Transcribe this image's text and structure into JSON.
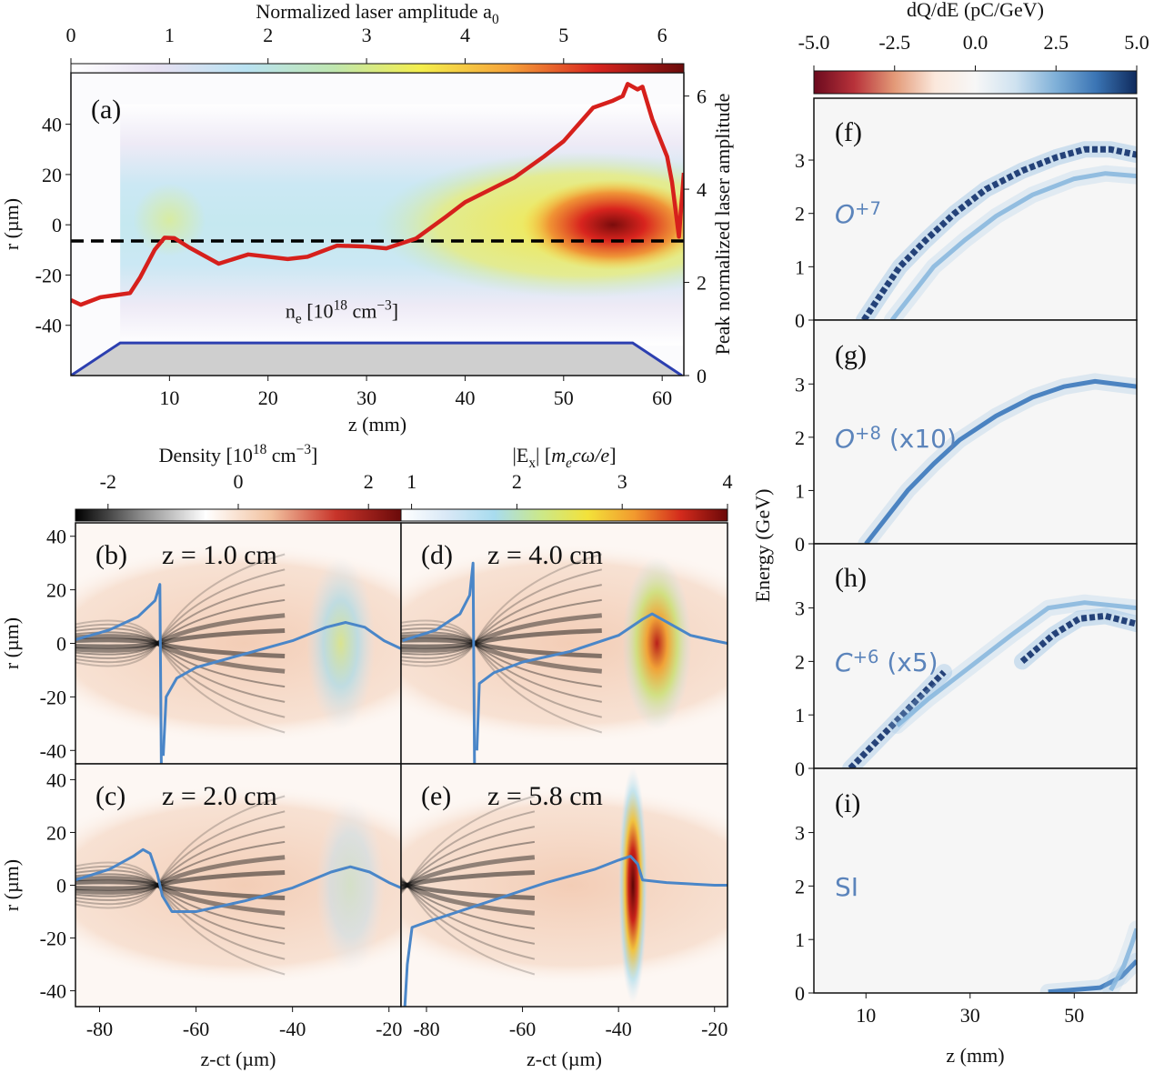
{
  "chart_data": [
    {
      "panel": "a",
      "type": "heatmap",
      "label": "(a)",
      "xlabel": "z (mm)",
      "ylabel": "r (µm)",
      "y2label": "Peak normalized laser amplitude",
      "xlim": [
        0,
        62.2
      ],
      "ylim": [
        -60,
        60.5
      ],
      "y2lim": [
        0,
        6.5
      ],
      "xticks": [
        10,
        20,
        30,
        40,
        50,
        60
      ],
      "yticks": [
        -40,
        -20,
        0,
        20,
        40
      ],
      "y2ticks": [
        0,
        2,
        4,
        6
      ],
      "colorbar": {
        "title": [
          {
            "t": "Normalized laser amplitude a"
          },
          {
            "t": "0",
            "sub": true
          }
        ],
        "lim": [
          0,
          6.22
        ],
        "ticks": [
          0,
          1,
          2,
          3,
          4,
          5,
          6
        ],
        "colormap": [
          "#ffffff",
          "#e6e0f2",
          "#b9e2f2",
          "#bfe6b0",
          "#f4ee4c",
          "#f6a33a",
          "#d8241e",
          "#6a0b0b"
        ]
      },
      "annotation": [
        {
          "t": "n"
        },
        {
          "t": "e",
          "sub": true
        },
        {
          "t": " [10"
        },
        {
          "t": "18",
          "sup": true
        },
        {
          "t": " cm"
        },
        {
          "t": "−3",
          "sup": true
        },
        {
          "t": "]"
        }
      ],
      "series": [
        {
          "axis": "y2",
          "color": "#d6201c",
          "points": [
            [
              0,
              1.62
            ],
            [
              1,
              1.52
            ],
            [
              3,
              1.68
            ],
            [
              6,
              1.77
            ],
            [
              7,
              2.1
            ],
            [
              8.5,
              2.7
            ],
            [
              9.5,
              2.96
            ],
            [
              10.5,
              2.95
            ],
            [
              12,
              2.75
            ],
            [
              15,
              2.4
            ],
            [
              18,
              2.6
            ],
            [
              22,
              2.5
            ],
            [
              24,
              2.55
            ],
            [
              27,
              2.79
            ],
            [
              30,
              2.77
            ],
            [
              32,
              2.73
            ],
            [
              35,
              2.94
            ],
            [
              38,
              3.4
            ],
            [
              40,
              3.72
            ],
            [
              45,
              4.25
            ],
            [
              48,
              4.7
            ],
            [
              50,
              5.03
            ],
            [
              53,
              5.75
            ],
            [
              55,
              5.9
            ],
            [
              56,
              6.0
            ],
            [
              56.5,
              6.26
            ],
            [
              57.5,
              6.14
            ],
            [
              58,
              6.2
            ],
            [
              59,
              5.5
            ],
            [
              60.5,
              4.7
            ],
            [
              61,
              4.15
            ],
            [
              61.7,
              2.98
            ],
            [
              62.2,
              4.35
            ]
          ]
        },
        {
          "axis": "y2",
          "color": "#2c3fb0",
          "fill": "#cfcfcf",
          "points": [
            [
              0,
              0
            ],
            [
              5,
              0.7
            ],
            [
              57,
              0.7
            ],
            [
              62,
              0
            ]
          ]
        }
      ],
      "hline": {
        "axis": "y2",
        "value": 2.89,
        "color": "#000000",
        "style": "dashed"
      }
    },
    {
      "panel": "b",
      "type": "heatmap",
      "label": "(b)",
      "title": "z = 1.0 cm",
      "ylabel": "r (µm)",
      "xlim": [
        -85,
        -17.5
      ],
      "ylim": [
        -45,
        45
      ],
      "yticks": [
        -40,
        -20,
        0,
        20,
        40
      ],
      "xticks": [],
      "colorbar": {
        "title": [
          {
            "t": "Density [10"
          },
          {
            "t": "18",
            "sup": true
          },
          {
            "t": " cm"
          },
          {
            "t": "−3",
            "sup": true
          },
          {
            "t": "]"
          }
        ],
        "lim": [
          -2.5,
          2.5
        ],
        "ticks": [
          -2,
          0,
          2
        ],
        "colormap": [
          "#000000",
          "#8a8a8a",
          "#ffffff",
          "#f2c2a0",
          "#c8342a",
          "#6b0a0a"
        ]
      },
      "laser_peak_z": -30,
      "laser_peak_level": 2.4,
      "series": [
        {
          "color": "#4a86c8",
          "points": [
            [
              -85,
              1.4
            ],
            [
              -78,
              5
            ],
            [
              -72,
              10
            ],
            [
              -68.5,
              16
            ],
            [
              -67.5,
              22
            ],
            [
              -67.2,
              -45
            ]
          ]
        },
        {
          "color": "#4a86c8",
          "points": [
            [
              -66.8,
              -42
            ],
            [
              -66.2,
              -20
            ],
            [
              -64,
              -13
            ],
            [
              -60,
              -9
            ],
            [
              -50,
              -4
            ],
            [
              -40,
              1
            ],
            [
              -33,
              6
            ],
            [
              -29,
              7.8
            ],
            [
              -25,
              6
            ],
            [
              -21,
              1
            ],
            [
              -17.5,
              -2
            ]
          ]
        }
      ]
    },
    {
      "panel": "c",
      "type": "heatmap",
      "label": "(c)",
      "title": "z = 2.0 cm",
      "ylabel": "r (µm)",
      "xlabel": "z-ct (µm)",
      "xlim": [
        -85,
        -17.5
      ],
      "ylim": [
        -46,
        46
      ],
      "yticks": [
        -40,
        -20,
        0,
        20,
        40
      ],
      "xticks": [
        -80,
        -60,
        -40,
        -20
      ],
      "laser_peak_z": -28,
      "laser_peak_level": 2.0,
      "series": [
        {
          "color": "#4a86c8",
          "points": [
            [
              -85,
              2
            ],
            [
              -78,
              6
            ],
            [
              -73,
              11
            ],
            [
              -71,
              13.5
            ],
            [
              -69.5,
              12
            ],
            [
              -68,
              4
            ],
            [
              -67,
              -4
            ],
            [
              -65,
              -10
            ],
            [
              -60,
              -10
            ],
            [
              -50,
              -6
            ],
            [
              -40,
              -1
            ],
            [
              -32,
              5
            ],
            [
              -28,
              7
            ],
            [
              -24,
              5
            ],
            [
              -20,
              1
            ],
            [
              -17.5,
              -1
            ]
          ]
        }
      ]
    },
    {
      "panel": "d",
      "type": "heatmap",
      "label": "(d)",
      "title": "z = 4.0 cm",
      "xlim": [
        -85.3,
        -17.3
      ],
      "ylim": [
        -45,
        45
      ],
      "yticks": [],
      "xticks": [],
      "colorbar": {
        "title": [
          {
            "t": "|E"
          },
          {
            "t": "x",
            "sub": true
          },
          {
            "t": "| ["
          },
          {
            "t": "m",
            "it": true
          },
          {
            "t": "e",
            "sub": true,
            "it": true
          },
          {
            "t": "cω/e",
            "it": true
          },
          {
            "t": "]"
          }
        ],
        "lim": [
          0.9,
          4.0
        ],
        "ticks": [
          1,
          2,
          3,
          4
        ],
        "colormap": [
          "#ffffff",
          "#d8e8f6",
          "#a8dcef",
          "#cbe88a",
          "#f3e23a",
          "#f29a2e",
          "#d32a1c",
          "#6a0808"
        ]
      },
      "laser_peak_z": -32,
      "laser_peak_level": 3.4,
      "series": [
        {
          "color": "#4a86c8",
          "points": [
            [
              -85,
              1
            ],
            [
              -78,
              5
            ],
            [
              -73,
              11
            ],
            [
              -71,
              18
            ],
            [
              -70.3,
              30
            ],
            [
              -70,
              -45
            ]
          ]
        },
        {
          "color": "#4a86c8",
          "points": [
            [
              -69.5,
              -40
            ],
            [
              -69,
              -15
            ],
            [
              -66,
              -11
            ],
            [
              -60,
              -7
            ],
            [
              -50,
              -3
            ],
            [
              -40,
              3
            ],
            [
              -35,
              9
            ],
            [
              -33,
              11
            ],
            [
              -30,
              8
            ],
            [
              -25,
              3
            ],
            [
              -20,
              1
            ],
            [
              -17.3,
              0
            ]
          ]
        }
      ]
    },
    {
      "panel": "e",
      "type": "heatmap",
      "label": "(e)",
      "title": "z = 5.8 cm",
      "xlabel": "z-ct (µm)",
      "xlim": [
        -85.3,
        -17.3
      ],
      "ylim": [
        -46,
        46
      ],
      "yticks": [],
      "xticks": [
        -80,
        -60,
        -40,
        -20
      ],
      "laser_peak_z": -37,
      "laser_peak_level": 4.0,
      "series": [
        {
          "color": "#4a86c8",
          "points": [
            [
              -84.5,
              -46
            ],
            [
              -84,
              -30
            ],
            [
              -83,
              -16
            ],
            [
              -80,
              -14
            ],
            [
              -75,
              -11
            ],
            [
              -65,
              -5
            ],
            [
              -55,
              1
            ],
            [
              -45,
              6
            ],
            [
              -40,
              9.5
            ],
            [
              -37.5,
              11
            ],
            [
              -36,
              8
            ],
            [
              -35,
              2
            ],
            [
              -30,
              1
            ],
            [
              -20,
              0
            ],
            [
              -17.3,
              0
            ]
          ]
        }
      ]
    },
    {
      "panel": "f",
      "type": "heatmap",
      "label": "(f)",
      "species": [
        {
          "t": "O",
          "it": true
        },
        {
          "t": "+7",
          "sup": true
        }
      ],
      "xlim": [
        0,
        62
      ],
      "ylim": [
        0,
        4.16
      ],
      "yticks": [
        0,
        1,
        2,
        3
      ],
      "xticks": [],
      "colorbar": {
        "title": [
          {
            "t": "dQ/dE (pC/GeV)"
          }
        ],
        "lim": [
          -5,
          5
        ],
        "ticks": [
          -5.0,
          -2.5,
          0.0,
          2.5,
          5.0
        ],
        "tick_labels": [
          "-5.0",
          "-2.5",
          "0.0",
          "2.5",
          "5.0"
        ],
        "colormap": [
          "#6b0a1e",
          "#b8323a",
          "#e39a78",
          "#fbe8dc",
          "#f7f7f7",
          "#cfe2f0",
          "#7fb0d8",
          "#3a74b4",
          "#0f2a5c"
        ]
      },
      "ridges": [
        {
          "level": 5.0,
          "points": [
            [
              9.6,
              0
            ],
            [
              13,
              0.5
            ],
            [
              16.5,
              1
            ],
            [
              21.5,
              1.5
            ],
            [
              27,
              2
            ],
            [
              33,
              2.45
            ],
            [
              40,
              2.8
            ],
            [
              46.5,
              3.05
            ],
            [
              52,
              3.2
            ],
            [
              57,
              3.2
            ],
            [
              62,
              3.1
            ]
          ]
        },
        {
          "level": 2.0,
          "points": [
            [
              15,
              0
            ],
            [
              19,
              0.5
            ],
            [
              23,
              1
            ],
            [
              29,
              1.5
            ],
            [
              35,
              1.95
            ],
            [
              42,
              2.35
            ],
            [
              50,
              2.65
            ],
            [
              56,
              2.75
            ],
            [
              62,
              2.7
            ]
          ]
        }
      ]
    },
    {
      "panel": "g",
      "type": "heatmap",
      "label": "(g)",
      "species": [
        {
          "t": "O",
          "it": true
        },
        {
          "t": "+8",
          "sup": true
        },
        {
          "t": " (x10)"
        }
      ],
      "xlim": [
        0,
        62
      ],
      "ylim": [
        0,
        4.2
      ],
      "yticks": [
        0,
        1,
        2,
        3
      ],
      "xticks": [],
      "ridges": [
        {
          "level": 2.6,
          "points": [
            [
              10,
              0
            ],
            [
              14,
              0.5
            ],
            [
              18,
              1
            ],
            [
              23,
              1.5
            ],
            [
              28,
              1.95
            ],
            [
              35,
              2.4
            ],
            [
              42,
              2.75
            ],
            [
              48,
              2.95
            ],
            [
              54,
              3.05
            ],
            [
              62,
              2.95
            ]
          ]
        }
      ]
    },
    {
      "panel": "h",
      "type": "heatmap",
      "label": "(h)",
      "species": [
        {
          "t": "C",
          "it": true
        },
        {
          "t": "+6",
          "sup": true
        },
        {
          "t": " (x5)"
        }
      ],
      "xlim": [
        0,
        62
      ],
      "ylim": [
        0,
        4.2
      ],
      "yticks": [
        0,
        1,
        2,
        3
      ],
      "xticks": [],
      "ridges": [
        {
          "level": 4.5,
          "points": [
            [
              7,
              0
            ],
            [
              11,
              0.4
            ],
            [
              15,
              0.8
            ],
            [
              20,
              1.3
            ],
            [
              25,
              1.8
            ]
          ]
        },
        {
          "level": 2.0,
          "points": [
            [
              16,
              0.8
            ],
            [
              22,
              1.3
            ],
            [
              30,
              1.9
            ],
            [
              38,
              2.5
            ],
            [
              45,
              3.0
            ],
            [
              52,
              3.1
            ],
            [
              62,
              3.0
            ]
          ]
        },
        {
          "level": 5.0,
          "points": [
            [
              40,
              2.0
            ],
            [
              46,
              2.5
            ],
            [
              51,
              2.8
            ],
            [
              56,
              2.85
            ],
            [
              62,
              2.7
            ]
          ]
        }
      ]
    },
    {
      "panel": "i",
      "type": "heatmap",
      "label": "(i)",
      "species": [
        {
          "t": "SI"
        }
      ],
      "xlabel": "z (mm)",
      "ylabel": "Energy (GeV)",
      "xlim": [
        0,
        62
      ],
      "ylim": [
        0,
        4.2
      ],
      "yticks": [
        0,
        1,
        2,
        3
      ],
      "xticks": [
        10,
        30,
        50
      ],
      "ridges": [
        {
          "level": 2.5,
          "points": [
            [
              45,
              0.02
            ],
            [
              55,
              0.1
            ],
            [
              59,
              0.3
            ],
            [
              62,
              0.6
            ]
          ]
        },
        {
          "level": 1.5,
          "points": [
            [
              57,
              0.05
            ],
            [
              59.5,
              0.5
            ],
            [
              61,
              0.9
            ],
            [
              62,
              1.2
            ]
          ]
        }
      ]
    }
  ]
}
